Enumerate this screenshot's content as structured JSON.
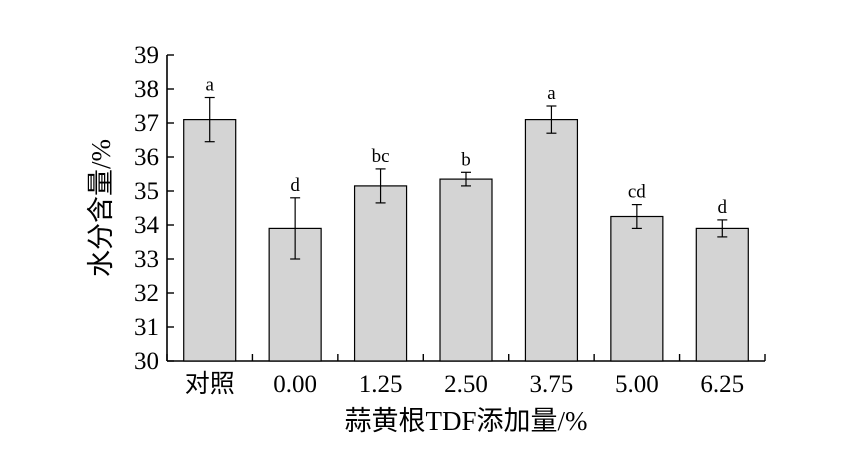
{
  "chart_data": {
    "type": "bar",
    "xlabel": "蒜黄根TDF添加量/%",
    "ylabel": "水分含量/%",
    "ylim": [
      30,
      39
    ],
    "yticks": [
      30,
      31,
      32,
      33,
      34,
      35,
      36,
      37,
      38,
      39
    ],
    "categories": [
      "对照",
      "0.00",
      "1.25",
      "2.50",
      "3.75",
      "5.00",
      "6.25"
    ],
    "values": [
      37.1,
      33.9,
      35.15,
      35.35,
      37.1,
      34.25,
      33.9
    ],
    "errors": [
      0.65,
      0.9,
      0.5,
      0.2,
      0.4,
      0.35,
      0.25
    ],
    "significance": [
      "a",
      "d",
      "bc",
      "b",
      "a",
      "cd",
      "d"
    ],
    "bar_color": "#d4d4d4",
    "grid": false
  }
}
